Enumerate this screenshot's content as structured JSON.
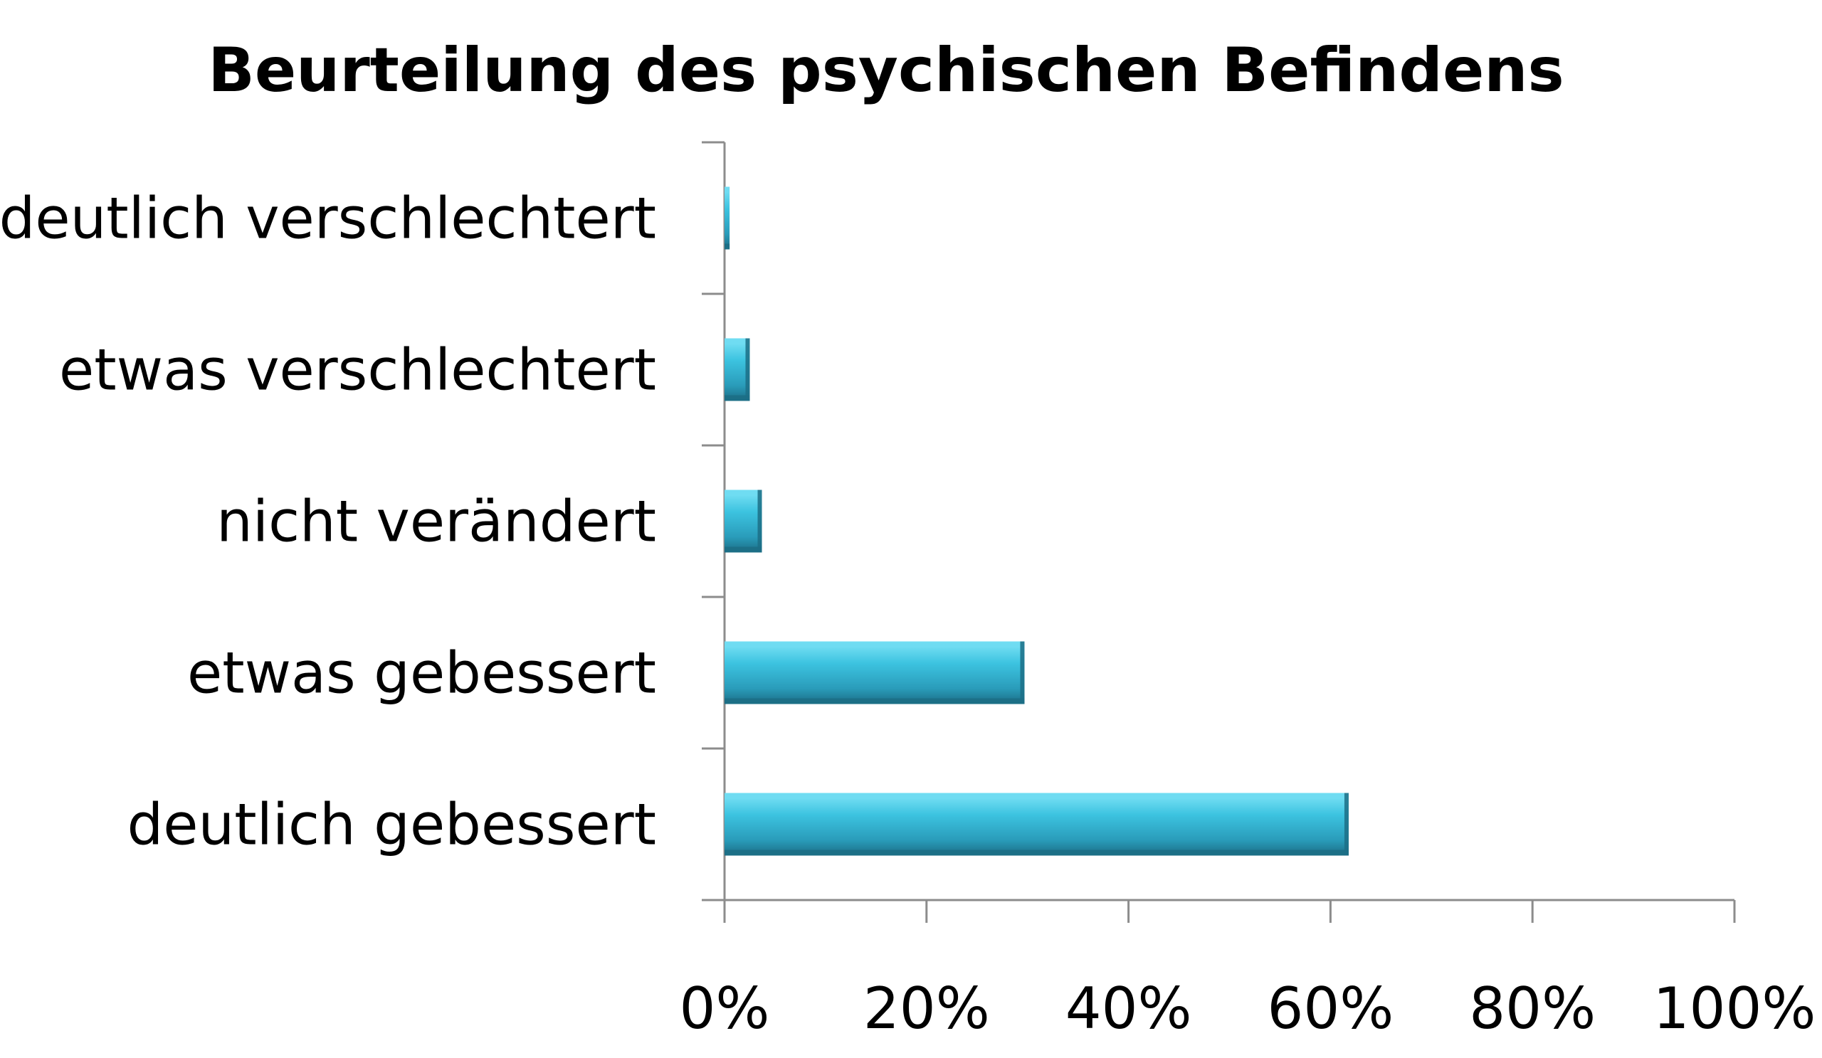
{
  "chart_data": {
    "type": "bar",
    "orientation": "horizontal",
    "title": "Beurteilung des psychischen Befindens",
    "xlabel": "",
    "ylabel": "",
    "categories": [
      "deutlich verschlechtert",
      "etwas verschlechtert",
      "nicht verändert",
      "etwas gebessert",
      "deutlich gebessert"
    ],
    "values": [
      0.5,
      2.5,
      3.7,
      29.7,
      61.8
    ],
    "xlim": [
      0,
      100
    ],
    "x_ticks": [
      0,
      20,
      40,
      60,
      80,
      100
    ],
    "x_tick_labels": [
      "0%",
      "20%",
      "40%",
      "60%",
      "80%",
      "100%"
    ],
    "grid": false,
    "legend": "none",
    "bar_color": "#2e9bb8",
    "bar_highlight": "#6fdcf2",
    "bar_shadow": "#1c6f86"
  }
}
